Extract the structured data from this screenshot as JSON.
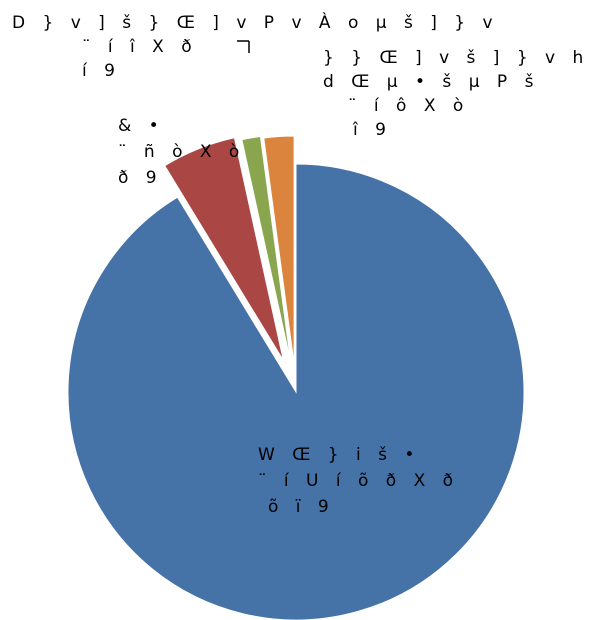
{
  "chart_data": {
    "type": "pie",
    "title": "",
    "slices": [
      {
        "value": 90.2,
        "color": "#4572A7",
        "label_lines": [
          "W Œ } i   š •",
          "¨ í U í õ ð X ð",
          "õ ï 9"
        ]
      },
      {
        "value": 5.2,
        "color": "#AA4643",
        "label_lines": [
          "&   •",
          "¨ ñ ò X ò",
          "ð 9"
        ]
      },
      {
        "value": 1.3,
        "color": "#89A54E",
        "label_lines": [
          "D } v ] š } Œ ] v P   v   À o µ   š ] } v",
          "¨ í î X ð",
          "í 9"
        ]
      },
      {
        "value": 2.1,
        "color": "#DB843D",
        "label_lines": [
          "} } Œ   ] v   š ] } v   h v ] š   ~",
          "d Œ µ • š   µ   P   š",
          "¨ í ô X ò",
          "î 9"
        ]
      }
    ]
  }
}
